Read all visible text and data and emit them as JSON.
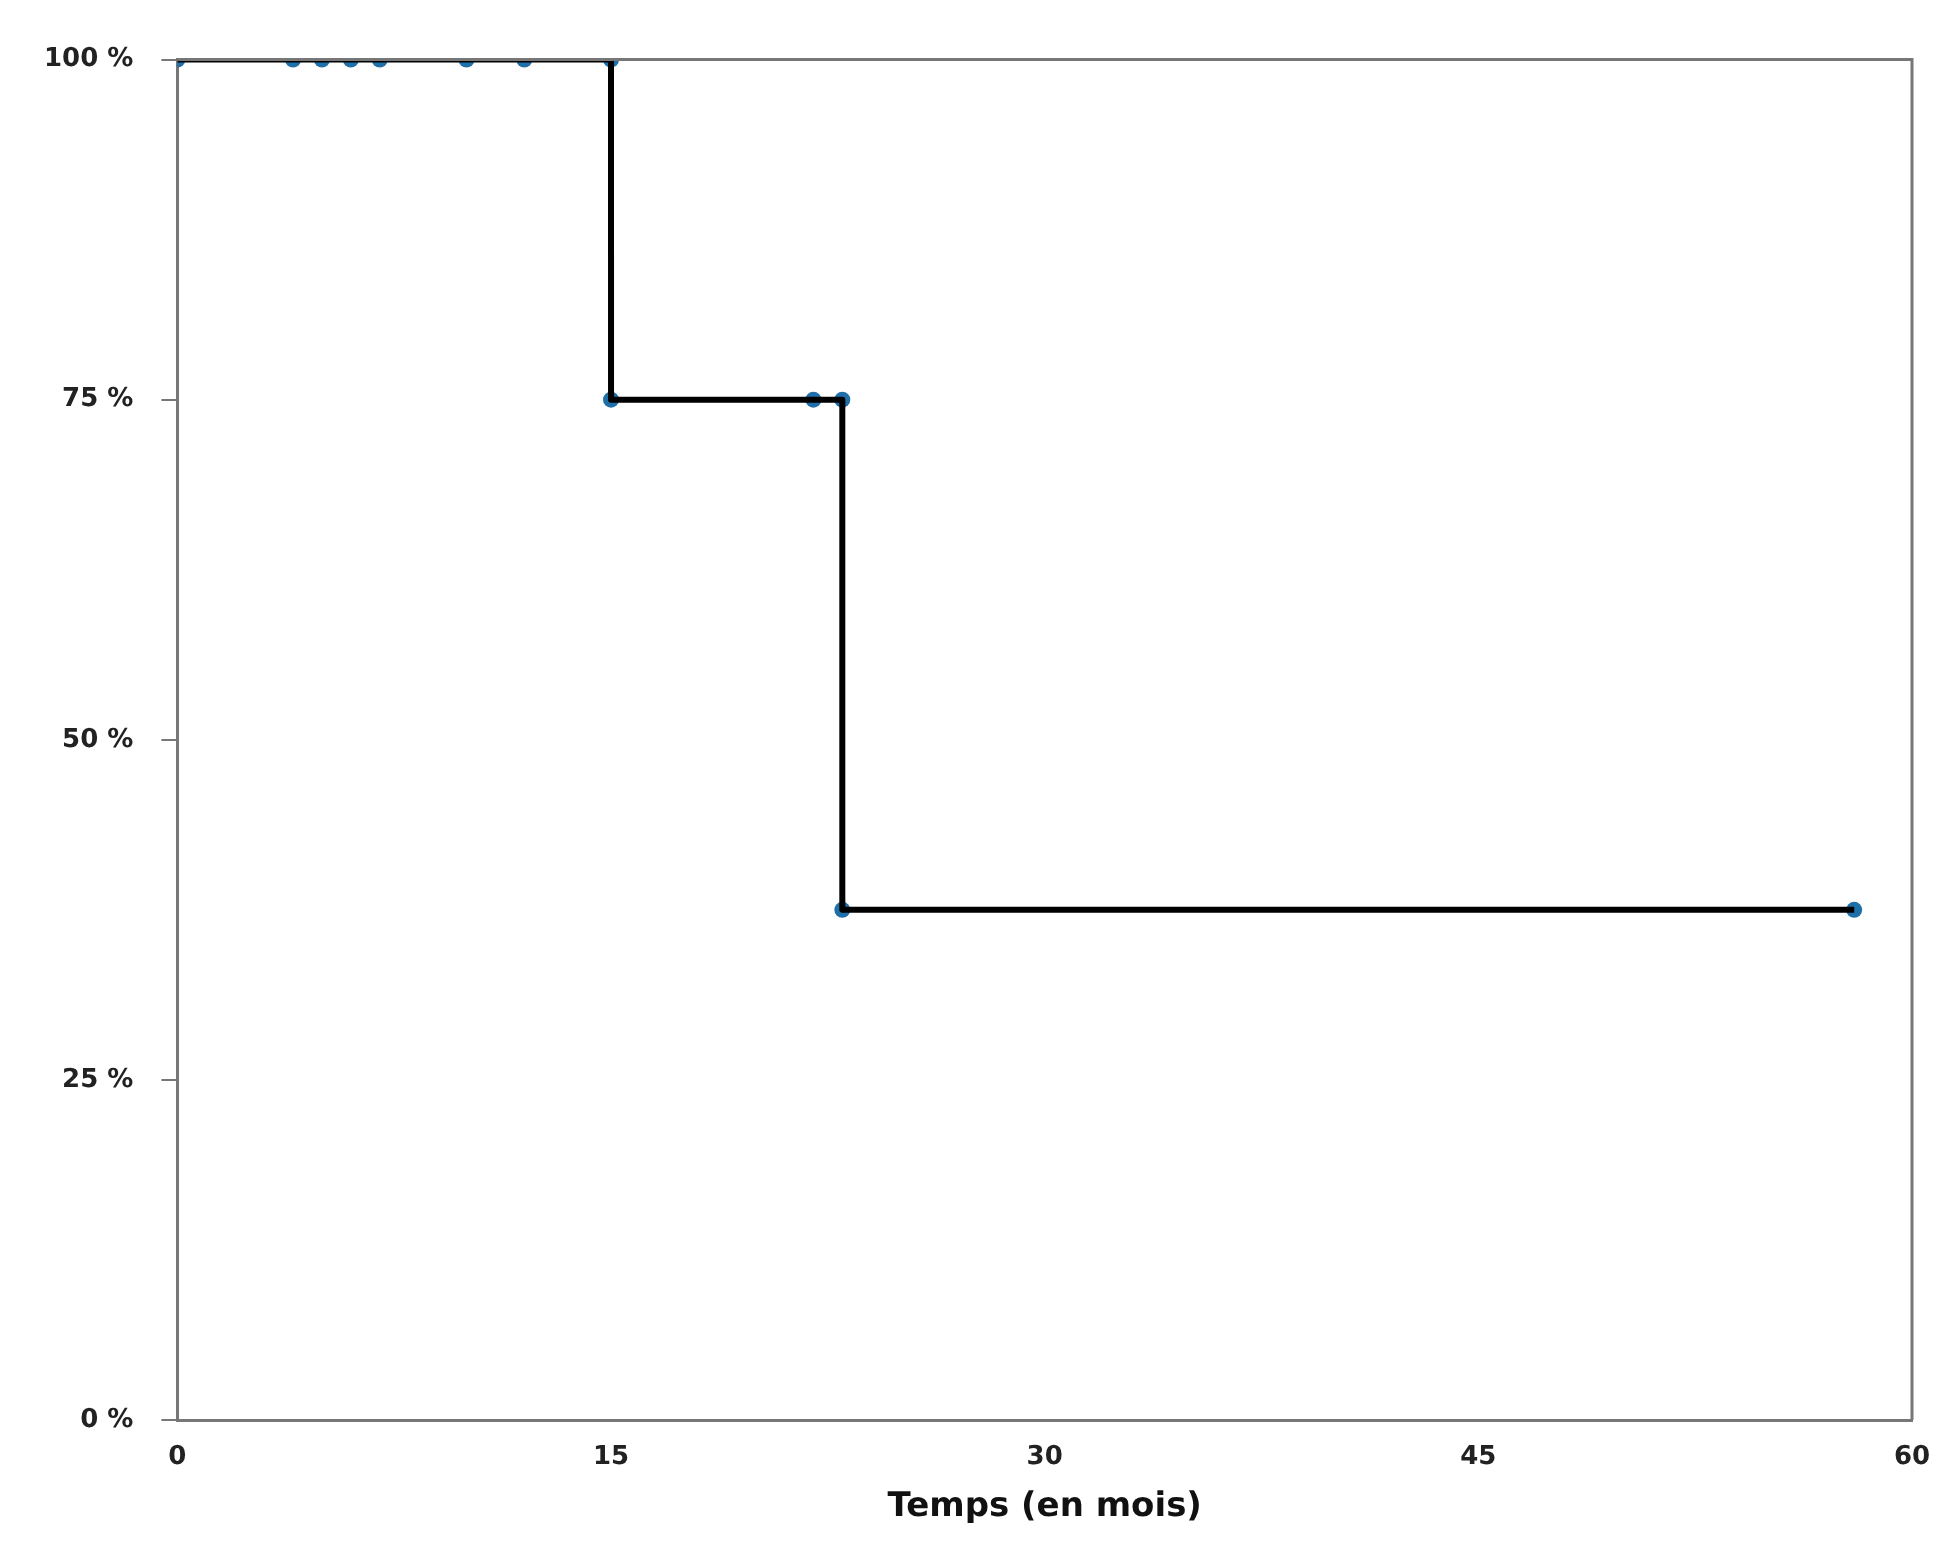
{
  "chart_data": {
    "type": "step",
    "xlabel": "Temps (en mois)",
    "xlim": [
      0,
      60
    ],
    "xticks": [
      0,
      15,
      30,
      45,
      60
    ],
    "ylim": [
      0,
      100
    ],
    "yticks": [
      {
        "value": 0,
        "label": "0 %"
      },
      {
        "value": 25,
        "label": "25 %"
      },
      {
        "value": 50,
        "label": "50 %"
      },
      {
        "value": 75,
        "label": "75 %"
      },
      {
        "value": 100,
        "label": "100 %"
      }
    ],
    "grid": false,
    "legend": false,
    "series": [
      {
        "type": "step",
        "color": "#000000",
        "marker": "none",
        "x": [
          0,
          15,
          23,
          58
        ],
        "values": [
          100,
          75,
          37.5,
          37.5
        ]
      },
      {
        "type": "scatter",
        "color": "#1f6fa8",
        "marker": "circle",
        "x": [
          0,
          4,
          5,
          6,
          7,
          10,
          12,
          15,
          15,
          22,
          23,
          23,
          58
        ],
        "values": [
          100,
          100,
          100,
          100,
          100,
          100,
          100,
          100,
          75,
          75,
          75,
          37.5,
          37.5
        ]
      }
    ]
  }
}
